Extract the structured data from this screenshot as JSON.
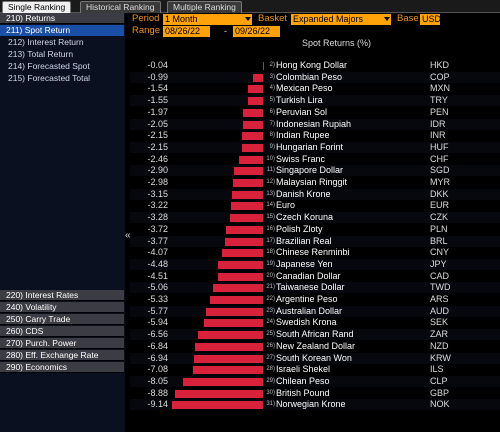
{
  "tabs": [
    {
      "label": "Single Ranking",
      "active": true
    },
    {
      "label": "Historical Ranking",
      "active": false
    },
    {
      "label": "Multiple Ranking",
      "active": false
    }
  ],
  "sidebar": {
    "top": [
      {
        "label": "210) Returns",
        "kind": "section"
      },
      {
        "label": "211) Spot Return",
        "kind": "selected"
      },
      {
        "label": "212) Interest Return",
        "kind": "sub"
      },
      {
        "label": "213) Total Return",
        "kind": "sub"
      },
      {
        "label": "214) Forecasted Spot",
        "kind": "sub"
      },
      {
        "label": "215) Forecasted Total",
        "kind": "sub"
      }
    ],
    "bottom": [
      {
        "label": "220) Interest Rates",
        "kind": "section"
      },
      {
        "label": "240) Volatility",
        "kind": "section"
      },
      {
        "label": "250) Carry Trade",
        "kind": "section"
      },
      {
        "label": "260) CDS",
        "kind": "section"
      },
      {
        "label": "270) Purch. Power",
        "kind": "section"
      },
      {
        "label": "280) Eff. Exchange Rate",
        "kind": "section"
      },
      {
        "label": "290) Economics",
        "kind": "section"
      }
    ],
    "collapse_glyph": "«"
  },
  "controls": {
    "period_label": "Period",
    "period_value": "1 Month",
    "basket_label": "Basket",
    "basket_value": "Expanded Majors",
    "base_label": "Base",
    "base_value": "USD",
    "range_label": "Range",
    "range_start": "08/26/22",
    "range_sep": "-",
    "range_end": "09/26/22"
  },
  "chart_data": {
    "type": "bar",
    "title": "Spot Returns (%)",
    "orientation": "horizontal",
    "bar_color": "#d8213a",
    "rows": [
      {
        "value": "-0.04",
        "rank": "2)",
        "name": "Hong Kong Dollar",
        "code": "HKD"
      },
      {
        "value": "-0.99",
        "rank": "3)",
        "name": "Colombian Peso",
        "code": "COP"
      },
      {
        "value": "-1.54",
        "rank": "4)",
        "name": "Mexican Peso",
        "code": "MXN"
      },
      {
        "value": "-1.55",
        "rank": "5)",
        "name": "Turkish Lira",
        "code": "TRY"
      },
      {
        "value": "-1.97",
        "rank": "6)",
        "name": "Peruvian Sol",
        "code": "PEN"
      },
      {
        "value": "-2.05",
        "rank": "7)",
        "name": "Indonesian Rupiah",
        "code": "IDR"
      },
      {
        "value": "-2.15",
        "rank": "8)",
        "name": "Indian Rupee",
        "code": "INR"
      },
      {
        "value": "-2.15",
        "rank": "9)",
        "name": "Hungarian Forint",
        "code": "HUF"
      },
      {
        "value": "-2.46",
        "rank": "10)",
        "name": "Swiss Franc",
        "code": "CHF"
      },
      {
        "value": "-2.90",
        "rank": "11)",
        "name": "Singapore Dollar",
        "code": "SGD"
      },
      {
        "value": "-2.98",
        "rank": "12)",
        "name": "Malaysian Ringgit",
        "code": "MYR"
      },
      {
        "value": "-3.15",
        "rank": "13)",
        "name": "Danish Krone",
        "code": "DKK"
      },
      {
        "value": "-3.22",
        "rank": "14)",
        "name": "Euro",
        "code": "EUR"
      },
      {
        "value": "-3.28",
        "rank": "15)",
        "name": "Czech Koruna",
        "code": "CZK"
      },
      {
        "value": "-3.72",
        "rank": "16)",
        "name": "Polish Zloty",
        "code": "PLN"
      },
      {
        "value": "-3.77",
        "rank": "17)",
        "name": "Brazilian Real",
        "code": "BRL"
      },
      {
        "value": "-4.07",
        "rank": "18)",
        "name": "Chinese Renminbi",
        "code": "CNY"
      },
      {
        "value": "-4.48",
        "rank": "19)",
        "name": "Japanese Yen",
        "code": "JPY"
      },
      {
        "value": "-4.51",
        "rank": "20)",
        "name": "Canadian Dollar",
        "code": "CAD"
      },
      {
        "value": "-5.06",
        "rank": "21)",
        "name": "Taiwanese Dollar",
        "code": "TWD"
      },
      {
        "value": "-5.33",
        "rank": "22)",
        "name": "Argentine Peso",
        "code": "ARS"
      },
      {
        "value": "-5.77",
        "rank": "23)",
        "name": "Australian Dollar",
        "code": "AUD"
      },
      {
        "value": "-5.94",
        "rank": "24)",
        "name": "Swedish Krona",
        "code": "SEK"
      },
      {
        "value": "-6.56",
        "rank": "25)",
        "name": "South African Rand",
        "code": "ZAR"
      },
      {
        "value": "-6.84",
        "rank": "26)",
        "name": "New Zealand Dollar",
        "code": "NZD"
      },
      {
        "value": "-6.94",
        "rank": "27)",
        "name": "South Korean Won",
        "code": "KRW"
      },
      {
        "value": "-7.08",
        "rank": "28)",
        "name": "Israeli Shekel",
        "code": "ILS"
      },
      {
        "value": "-8.05",
        "rank": "29)",
        "name": "Chilean Peso",
        "code": "CLP"
      },
      {
        "value": "-8.88",
        "rank": "30)",
        "name": "British Pound",
        "code": "GBP"
      },
      {
        "value": "-9.14",
        "rank": "31)",
        "name": "Norwegian Krone",
        "code": "NOK"
      }
    ]
  }
}
